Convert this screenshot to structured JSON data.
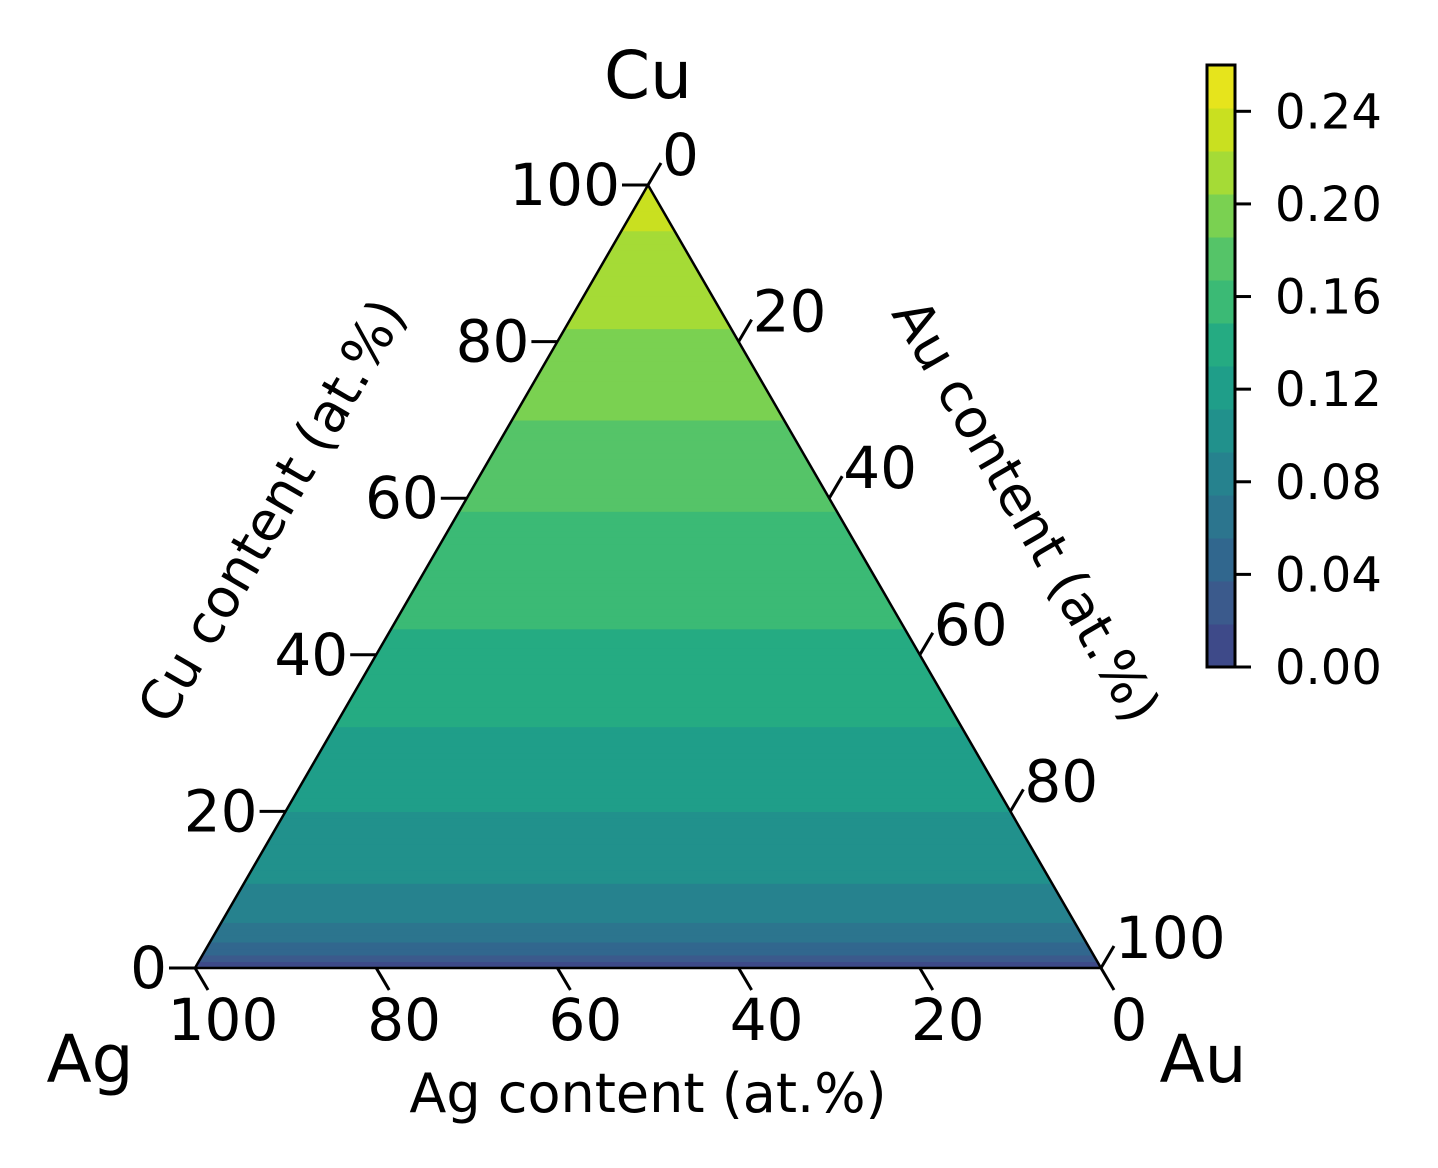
{
  "chart_data": {
    "type": "ternary-contour",
    "corners": {
      "top": "Cu",
      "left": "Ag",
      "right": "Au"
    },
    "axes": {
      "cu": {
        "label": "Cu content (at.%)",
        "ticks": [
          "0",
          "20",
          "40",
          "60",
          "80",
          "100"
        ]
      },
      "au": {
        "label": "Au content (at.%)",
        "ticks": [
          "0",
          "20",
          "40",
          "60",
          "80",
          "100"
        ]
      },
      "ag": {
        "label": "Ag content (at.%)",
        "ticks": [
          "100",
          "80",
          "60",
          "40",
          "20",
          "0"
        ]
      }
    },
    "colorbar": {
      "ticks": [
        "0.00",
        "0.04",
        "0.08",
        "0.12",
        "0.16",
        "0.20",
        "0.24"
      ],
      "range": [
        0.0,
        0.26
      ],
      "levels": 13,
      "colors": [
        "#3e4a89",
        "#3b5a8c",
        "#31678e",
        "#2c758e",
        "#26828e",
        "#21918c",
        "#1f9e89",
        "#25ab82",
        "#3bba75",
        "#55c468",
        "#7ad151",
        "#a5db36",
        "#c9e020",
        "#e6e41c"
      ]
    },
    "field": {
      "description_of_trend": "value increases with Cu content",
      "cu_fraction_to_value": [
        [
          0.0,
          0.0
        ],
        [
          0.01,
          0.02
        ],
        [
          0.03,
          0.06
        ],
        [
          0.07,
          0.09
        ],
        [
          0.15,
          0.11
        ],
        [
          0.25,
          0.13
        ],
        [
          0.4,
          0.155
        ],
        [
          0.55,
          0.175
        ],
        [
          0.7,
          0.2
        ],
        [
          0.85,
          0.225
        ],
        [
          1.0,
          0.25
        ]
      ]
    }
  }
}
